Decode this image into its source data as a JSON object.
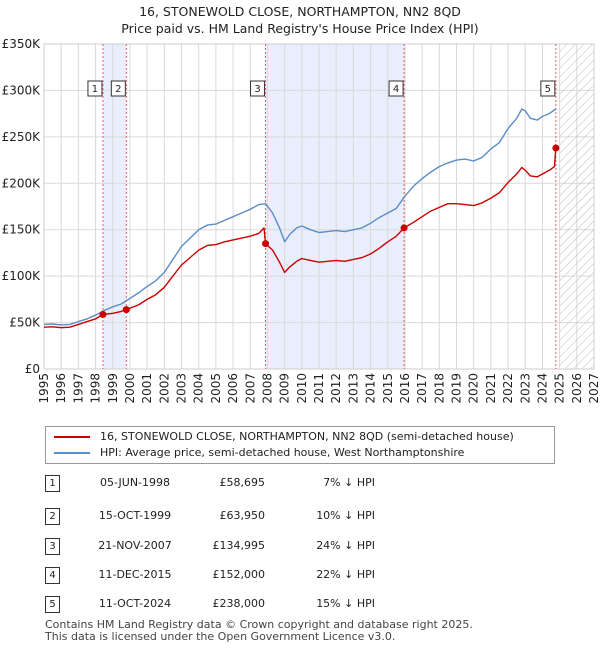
{
  "header": {
    "title": "16, STONEWOLD CLOSE, NORTHAMPTON, NN2 8QD",
    "subtitle": "Price paid vs. HM Land Registry's House Price Index (HPI)"
  },
  "colors": {
    "price_line": "#cc0000",
    "hpi_line": "#5b8cc8",
    "shade": "#e8eefb",
    "grid": "#d9d9d9",
    "vline": "#e06060"
  },
  "chart_data": {
    "type": "line",
    "title": "16, STONEWOLD CLOSE, NORTHAMPTON, NN2 8QD",
    "subtitle": "Price paid vs. HM Land Registry's House Price Index (HPI)",
    "xlim": [
      1995,
      2027
    ],
    "ylim": [
      0,
      350000
    ],
    "x_ticks": [
      "1995",
      "1996",
      "1997",
      "1998",
      "1999",
      "2000",
      "2001",
      "2002",
      "2003",
      "2004",
      "2005",
      "2006",
      "2007",
      "2008",
      "2009",
      "2010",
      "2011",
      "2012",
      "2013",
      "2014",
      "2015",
      "2016",
      "2017",
      "2018",
      "2019",
      "2020",
      "2021",
      "2022",
      "2023",
      "2024",
      "2025",
      "2026",
      "2027"
    ],
    "y_ticks": [
      {
        "value": 0,
        "label": "£0"
      },
      {
        "value": 50000,
        "label": "£50K"
      },
      {
        "value": 100000,
        "label": "£100K"
      },
      {
        "value": 150000,
        "label": "£150K"
      },
      {
        "value": 200000,
        "label": "£200K"
      },
      {
        "value": 250000,
        "label": "£250K"
      },
      {
        "value": 300000,
        "label": "£300K"
      },
      {
        "value": 350000,
        "label": "£350K"
      }
    ],
    "grid": true,
    "legend_position": "bottom",
    "shaded_spans": [
      [
        1998.43,
        1999.79
      ],
      [
        2007.89,
        2015.95
      ]
    ],
    "future_hatch_from": 2025.0,
    "series": [
      {
        "name": "HPI: Average price, semi-detached house, West Northamptonshire",
        "color": "#5b8cc8",
        "points": [
          [
            1995.0,
            48000
          ],
          [
            1995.5,
            48500
          ],
          [
            1996.0,
            47500
          ],
          [
            1996.5,
            48000
          ],
          [
            1997.0,
            51000
          ],
          [
            1997.5,
            54000
          ],
          [
            1998.0,
            58000
          ],
          [
            1998.5,
            63000
          ],
          [
            1999.0,
            67000
          ],
          [
            1999.5,
            70000
          ],
          [
            2000.0,
            76000
          ],
          [
            2000.5,
            82000
          ],
          [
            2001.0,
            89000
          ],
          [
            2001.5,
            95000
          ],
          [
            2002.0,
            104000
          ],
          [
            2002.5,
            118000
          ],
          [
            2003.0,
            132000
          ],
          [
            2003.5,
            141000
          ],
          [
            2004.0,
            150000
          ],
          [
            2004.5,
            155000
          ],
          [
            2005.0,
            156000
          ],
          [
            2005.5,
            160000
          ],
          [
            2006.0,
            164000
          ],
          [
            2006.5,
            168000
          ],
          [
            2007.0,
            172000
          ],
          [
            2007.5,
            177000
          ],
          [
            2007.89,
            178000
          ],
          [
            2008.3,
            168000
          ],
          [
            2008.7,
            152000
          ],
          [
            2009.0,
            137000
          ],
          [
            2009.3,
            145000
          ],
          [
            2009.7,
            152000
          ],
          [
            2010.0,
            154000
          ],
          [
            2010.5,
            150000
          ],
          [
            2011.0,
            147000
          ],
          [
            2011.5,
            148000
          ],
          [
            2012.0,
            149000
          ],
          [
            2012.5,
            148000
          ],
          [
            2013.0,
            150000
          ],
          [
            2013.5,
            152000
          ],
          [
            2014.0,
            157000
          ],
          [
            2014.5,
            163000
          ],
          [
            2015.0,
            168000
          ],
          [
            2015.5,
            173000
          ],
          [
            2015.95,
            185000
          ],
          [
            2016.5,
            197000
          ],
          [
            2017.0,
            205000
          ],
          [
            2017.5,
            212000
          ],
          [
            2018.0,
            218000
          ],
          [
            2018.5,
            222000
          ],
          [
            2019.0,
            225000
          ],
          [
            2019.5,
            226000
          ],
          [
            2020.0,
            224000
          ],
          [
            2020.5,
            228000
          ],
          [
            2021.0,
            237000
          ],
          [
            2021.5,
            244000
          ],
          [
            2022.0,
            259000
          ],
          [
            2022.5,
            270000
          ],
          [
            2022.8,
            280000
          ],
          [
            2023.0,
            278000
          ],
          [
            2023.3,
            270000
          ],
          [
            2023.7,
            268000
          ],
          [
            2024.0,
            272000
          ],
          [
            2024.4,
            275000
          ],
          [
            2024.78,
            280000
          ]
        ]
      },
      {
        "name": "16, STONEWOLD CLOSE, NORTHAMPTON, NN2 8QD (semi-detached house)",
        "color": "#cc0000",
        "points": [
          [
            1995.0,
            45000
          ],
          [
            1995.5,
            45500
          ],
          [
            1996.0,
            44500
          ],
          [
            1996.5,
            45000
          ],
          [
            1997.0,
            48000
          ],
          [
            1997.5,
            51000
          ],
          [
            1998.0,
            54000
          ],
          [
            1998.43,
            58695
          ],
          [
            1999.0,
            60000
          ],
          [
            1999.5,
            62000
          ],
          [
            1999.79,
            63950
          ],
          [
            2000.5,
            69000
          ],
          [
            2001.0,
            75000
          ],
          [
            2001.5,
            80000
          ],
          [
            2002.0,
            88000
          ],
          [
            2002.5,
            100000
          ],
          [
            2003.0,
            112000
          ],
          [
            2003.5,
            120000
          ],
          [
            2004.0,
            128000
          ],
          [
            2004.5,
            133000
          ],
          [
            2005.0,
            134000
          ],
          [
            2005.5,
            137000
          ],
          [
            2006.0,
            139000
          ],
          [
            2006.5,
            141000
          ],
          [
            2007.0,
            143000
          ],
          [
            2007.5,
            146000
          ],
          [
            2007.8,
            152000
          ],
          [
            2007.89,
            134995
          ],
          [
            2008.3,
            128000
          ],
          [
            2008.7,
            115000
          ],
          [
            2009.0,
            104000
          ],
          [
            2009.3,
            110000
          ],
          [
            2009.7,
            116000
          ],
          [
            2010.0,
            119000
          ],
          [
            2010.5,
            117000
          ],
          [
            2011.0,
            115000
          ],
          [
            2011.5,
            116000
          ],
          [
            2012.0,
            117000
          ],
          [
            2012.5,
            116000
          ],
          [
            2013.0,
            118000
          ],
          [
            2013.5,
            120000
          ],
          [
            2014.0,
            124000
          ],
          [
            2014.5,
            130000
          ],
          [
            2015.0,
            137000
          ],
          [
            2015.5,
            143000
          ],
          [
            2015.95,
            152000
          ],
          [
            2016.5,
            158000
          ],
          [
            2017.0,
            164000
          ],
          [
            2017.5,
            170000
          ],
          [
            2018.0,
            174000
          ],
          [
            2018.5,
            178000
          ],
          [
            2019.0,
            178000
          ],
          [
            2019.5,
            177000
          ],
          [
            2020.0,
            176000
          ],
          [
            2020.5,
            179000
          ],
          [
            2021.0,
            184000
          ],
          [
            2021.5,
            190000
          ],
          [
            2022.0,
            201000
          ],
          [
            2022.5,
            210000
          ],
          [
            2022.8,
            217000
          ],
          [
            2023.0,
            214000
          ],
          [
            2023.3,
            208000
          ],
          [
            2023.7,
            207000
          ],
          [
            2024.0,
            210000
          ],
          [
            2024.4,
            214000
          ],
          [
            2024.7,
            218000
          ],
          [
            2024.78,
            238000
          ]
        ]
      }
    ],
    "sales": [
      {
        "num": "1",
        "x": 1998.43,
        "value": 58695
      },
      {
        "num": "2",
        "x": 1999.79,
        "value": 63950
      },
      {
        "num": "3",
        "x": 2007.89,
        "value": 134995
      },
      {
        "num": "4",
        "x": 2015.95,
        "value": 152000
      },
      {
        "num": "5",
        "x": 2024.78,
        "value": 238000
      }
    ]
  },
  "legend": {
    "price_label": "16, STONEWOLD CLOSE, NORTHAMPTON, NN2 8QD (semi-detached house)",
    "hpi_label": "HPI: Average price, semi-detached house, West Northamptonshire"
  },
  "transactions": [
    {
      "num": "1",
      "date": "05-JUN-1998",
      "price": "£58,695",
      "hpi": "7% ↓ HPI"
    },
    {
      "num": "2",
      "date": "15-OCT-1999",
      "price": "£63,950",
      "hpi": "10% ↓ HPI"
    },
    {
      "num": "3",
      "date": "21-NOV-2007",
      "price": "£134,995",
      "hpi": "24% ↓ HPI"
    },
    {
      "num": "4",
      "date": "11-DEC-2015",
      "price": "£152,000",
      "hpi": "22% ↓ HPI"
    },
    {
      "num": "5",
      "date": "11-OCT-2024",
      "price": "£238,000",
      "hpi": "15% ↓ HPI"
    }
  ],
  "footer": {
    "line1": "Contains HM Land Registry data © Crown copyright and database right 2025.",
    "line2": "This data is licensed under the Open Government Licence v3.0."
  }
}
